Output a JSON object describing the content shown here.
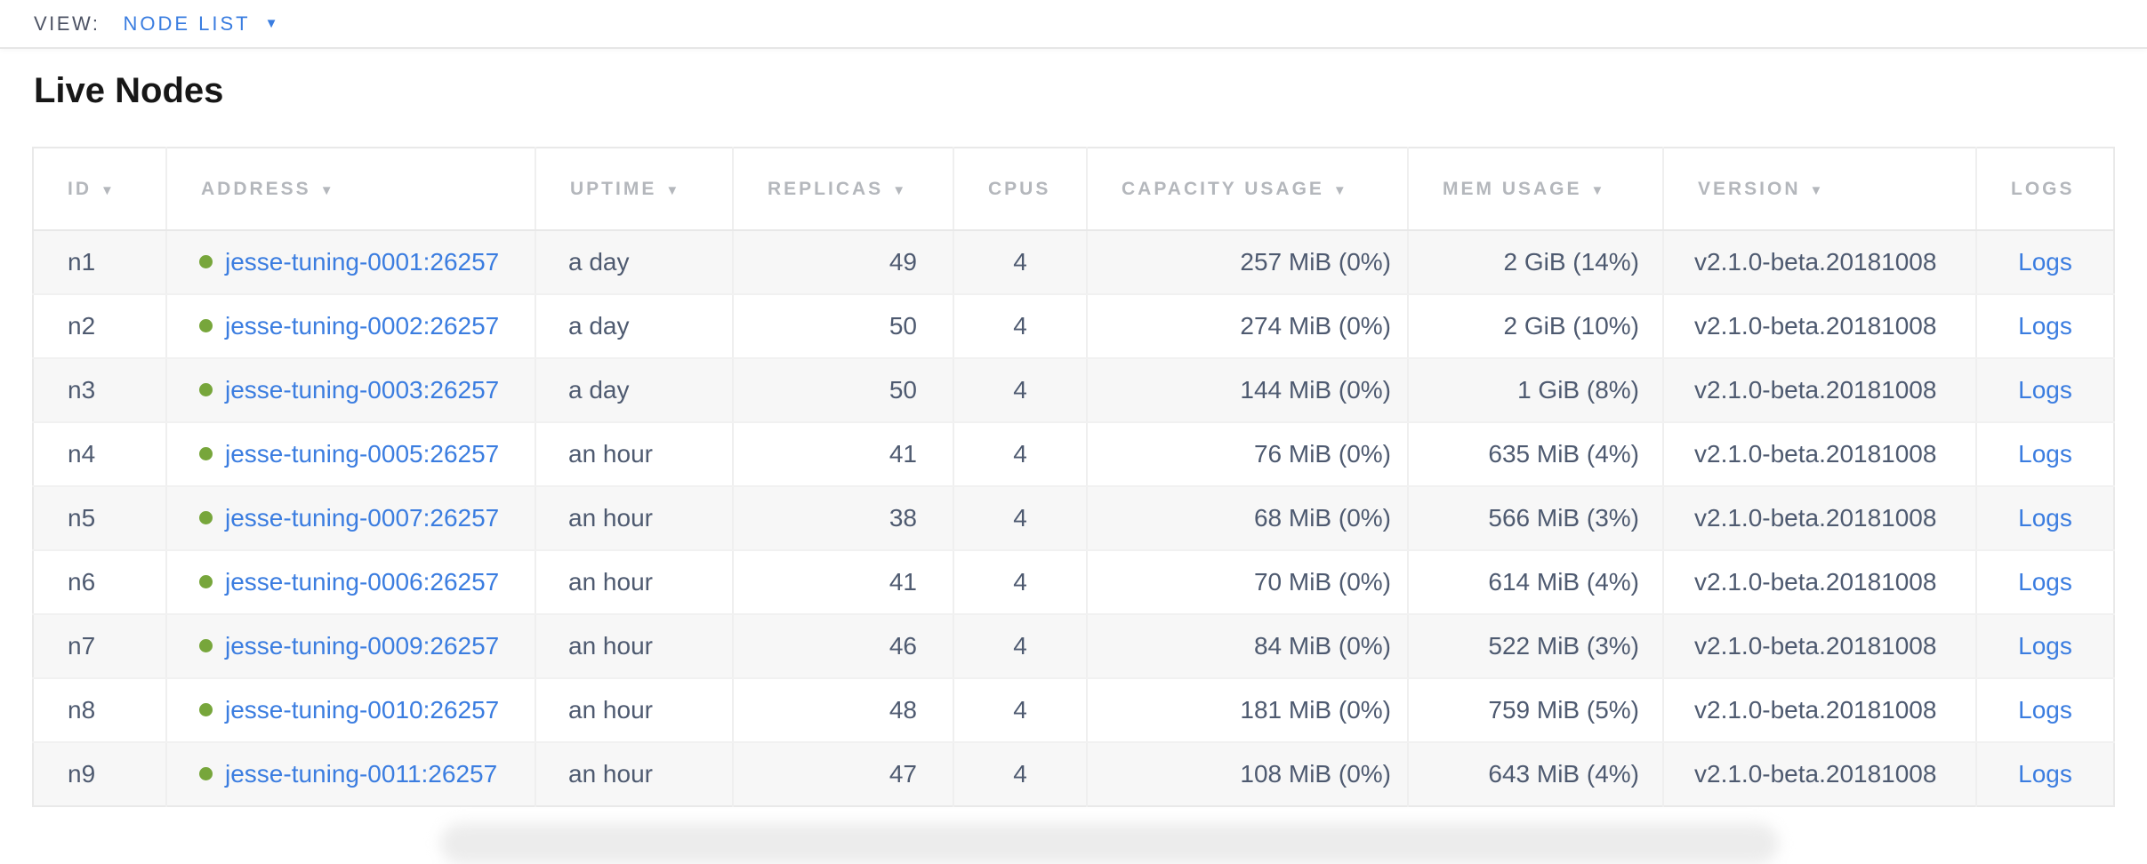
{
  "view_bar": {
    "label": "VIEW:",
    "selected_view": "NODE LIST",
    "caret": "▼"
  },
  "page_title": "Live Nodes",
  "table": {
    "sort_indicator": "▼",
    "columns": [
      {
        "id": "id",
        "label": "ID",
        "sortable": true
      },
      {
        "id": "address",
        "label": "ADDRESS",
        "sortable": true
      },
      {
        "id": "uptime",
        "label": "UPTIME",
        "sortable": true
      },
      {
        "id": "replicas",
        "label": "REPLICAS",
        "sortable": true
      },
      {
        "id": "cpus",
        "label": "CPUS",
        "sortable": false
      },
      {
        "id": "capacity",
        "label": "CAPACITY USAGE",
        "sortable": true
      },
      {
        "id": "mem",
        "label": "MEM USAGE",
        "sortable": true
      },
      {
        "id": "version",
        "label": "VERSION",
        "sortable": true
      },
      {
        "id": "logs",
        "label": "LOGS",
        "sortable": false
      }
    ],
    "rows": [
      {
        "id": "n1",
        "status": "live",
        "address": "jesse-tuning-0001:26257",
        "uptime": "a day",
        "replicas": "49",
        "cpus": "4",
        "capacity": "257 MiB (0%)",
        "mem": "2 GiB (14%)",
        "version": "v2.1.0-beta.20181008",
        "logs": "Logs"
      },
      {
        "id": "n2",
        "status": "live",
        "address": "jesse-tuning-0002:26257",
        "uptime": "a day",
        "replicas": "50",
        "cpus": "4",
        "capacity": "274 MiB (0%)",
        "mem": "2 GiB (10%)",
        "version": "v2.1.0-beta.20181008",
        "logs": "Logs"
      },
      {
        "id": "n3",
        "status": "live",
        "address": "jesse-tuning-0003:26257",
        "uptime": "a day",
        "replicas": "50",
        "cpus": "4",
        "capacity": "144 MiB (0%)",
        "mem": "1 GiB (8%)",
        "version": "v2.1.0-beta.20181008",
        "logs": "Logs"
      },
      {
        "id": "n4",
        "status": "live",
        "address": "jesse-tuning-0005:26257",
        "uptime": "an hour",
        "replicas": "41",
        "cpus": "4",
        "capacity": "76 MiB (0%)",
        "mem": "635 MiB (4%)",
        "version": "v2.1.0-beta.20181008",
        "logs": "Logs"
      },
      {
        "id": "n5",
        "status": "live",
        "address": "jesse-tuning-0007:26257",
        "uptime": "an hour",
        "replicas": "38",
        "cpus": "4",
        "capacity": "68 MiB (0%)",
        "mem": "566 MiB (3%)",
        "version": "v2.1.0-beta.20181008",
        "logs": "Logs"
      },
      {
        "id": "n6",
        "status": "live",
        "address": "jesse-tuning-0006:26257",
        "uptime": "an hour",
        "replicas": "41",
        "cpus": "4",
        "capacity": "70 MiB (0%)",
        "mem": "614 MiB (4%)",
        "version": "v2.1.0-beta.20181008",
        "logs": "Logs"
      },
      {
        "id": "n7",
        "status": "live",
        "address": "jesse-tuning-0009:26257",
        "uptime": "an hour",
        "replicas": "46",
        "cpus": "4",
        "capacity": "84 MiB (0%)",
        "mem": "522 MiB (3%)",
        "version": "v2.1.0-beta.20181008",
        "logs": "Logs"
      },
      {
        "id": "n8",
        "status": "live",
        "address": "jesse-tuning-0010:26257",
        "uptime": "an hour",
        "replicas": "48",
        "cpus": "4",
        "capacity": "181 MiB (0%)",
        "mem": "759 MiB (5%)",
        "version": "v2.1.0-beta.20181008",
        "logs": "Logs"
      },
      {
        "id": "n9",
        "status": "live",
        "address": "jesse-tuning-0011:26257",
        "uptime": "an hour",
        "replicas": "47",
        "cpus": "4",
        "capacity": "108 MiB (0%)",
        "mem": "643 MiB (4%)",
        "version": "v2.1.0-beta.20181008",
        "logs": "Logs"
      }
    ]
  },
  "colors": {
    "accent_blue": "#3a7de0",
    "link_blue": "#3b7de0",
    "live_green": "#77a63b",
    "header_gray": "#b4b7bc",
    "body_text": "#4e5a70"
  }
}
